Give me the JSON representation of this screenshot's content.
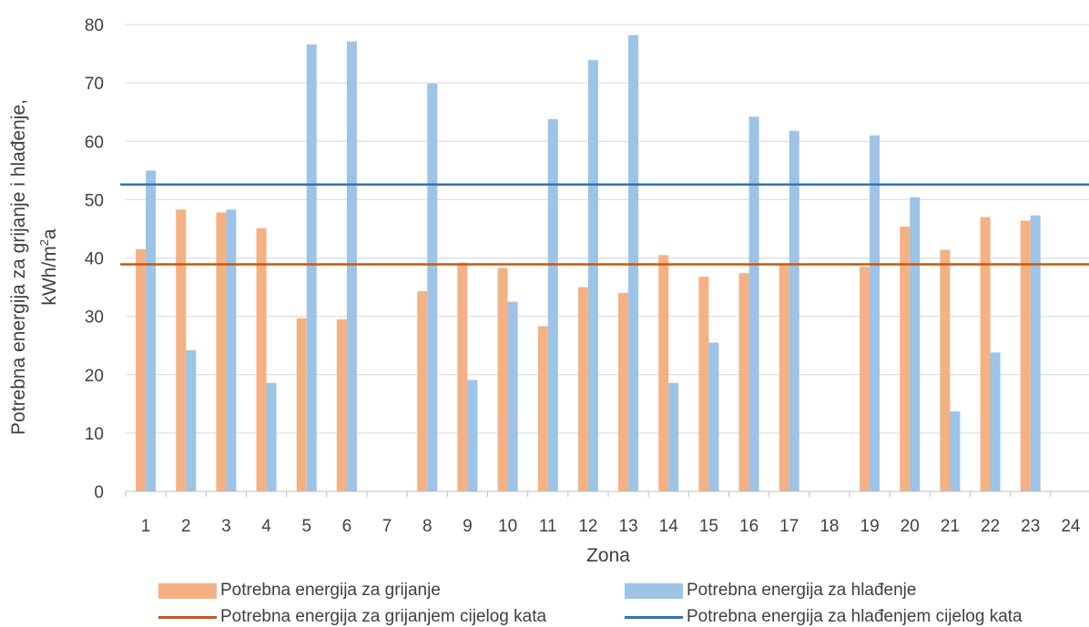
{
  "chart_data": {
    "type": "bar",
    "xlabel": "Zona",
    "ylabel_line1": "Potrebna energija za grijanje i hlađenje,",
    "ylabel_line2_prefix": "kWh/m",
    "ylabel_line2_sup": "2",
    "ylabel_line2_suffix": "a",
    "ylim": [
      0,
      80
    ],
    "yticks": [
      0,
      10,
      20,
      30,
      40,
      50,
      60,
      70,
      80
    ],
    "grid": true,
    "legend_position": "bottom",
    "categories": [
      "1",
      "2",
      "3",
      "4",
      "5",
      "6",
      "7",
      "8",
      "9",
      "10",
      "11",
      "12",
      "13",
      "14",
      "15",
      "16",
      "17",
      "18",
      "19",
      "20",
      "21",
      "22",
      "23",
      "24"
    ],
    "series": [
      {
        "name": "Potrebna energija za grijanje",
        "type": "bar",
        "color": "#f4b183",
        "values": [
          41.5,
          48.3,
          47.8,
          45.1,
          29.7,
          29.5,
          null,
          34.3,
          39.2,
          38.3,
          28.3,
          35.0,
          34.0,
          40.5,
          36.8,
          37.4,
          38.8,
          null,
          38.5,
          45.4,
          41.4,
          47.0,
          46.4,
          null
        ]
      },
      {
        "name": "Potrebna energija za hlađenje",
        "type": "bar",
        "color": "#9dc3e6",
        "values": [
          55.0,
          24.2,
          48.3,
          18.6,
          76.6,
          77.1,
          null,
          69.9,
          19.1,
          32.5,
          63.8,
          73.9,
          78.2,
          18.6,
          25.5,
          64.2,
          61.8,
          null,
          61.0,
          50.4,
          13.7,
          23.8,
          47.3,
          null
        ]
      },
      {
        "name": "Potrebna energija za grijanjem cijelog kata",
        "type": "line",
        "color": "#c55a11",
        "value": 38.9
      },
      {
        "name": "Potrebna energija za hlađenjem cijelog kata",
        "type": "line",
        "color": "#2e75b6",
        "value": 52.6
      }
    ]
  }
}
